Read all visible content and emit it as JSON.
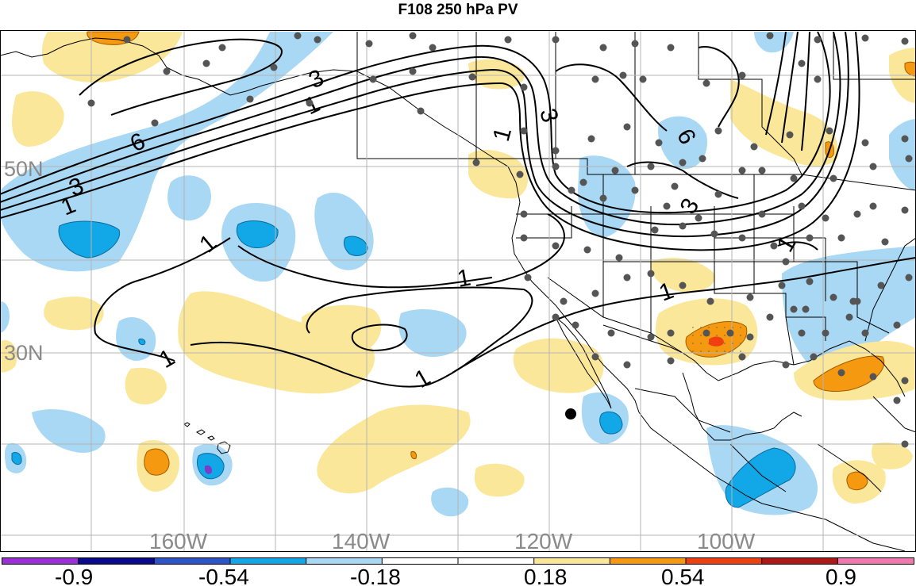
{
  "title": "F108 250 hPa PV",
  "lat_labels": [
    "50N",
    "30N"
  ],
  "lon_labels": [
    "160W",
    "140W",
    "120W",
    "100W"
  ],
  "contour_labels": [
    "3",
    "6",
    "1",
    "3",
    "1",
    "3",
    "1",
    "6",
    "3",
    "1",
    "1",
    "1",
    "1",
    "1",
    "1"
  ],
  "colorbar": {
    "tick_labels": [
      "-0.9",
      "-0.54",
      "-0.18",
      "0.18",
      "0.54",
      "0.9"
    ],
    "colors": [
      "#9b30d6",
      "#0a0a8c",
      "#2e55c8",
      "#12a8e8",
      "#a8d8f4",
      "#ffffff",
      "#ffffff",
      "#fbe79a",
      "#f59a10",
      "#ee4010",
      "#b01818",
      "#f07ab0"
    ]
  },
  "shading_colors": {
    "weak_positive": "#fbe79a",
    "moderate_positive": "#f59a10",
    "strong_positive": "#ee4010",
    "weak_negative": "#a8d8f4",
    "moderate_negative": "#12a8e8",
    "strong_negative": "#7b3cc8",
    "contour": "#000000",
    "coastline": "#000000",
    "station_dot": "#555555",
    "grid": "#b4b4b4"
  }
}
